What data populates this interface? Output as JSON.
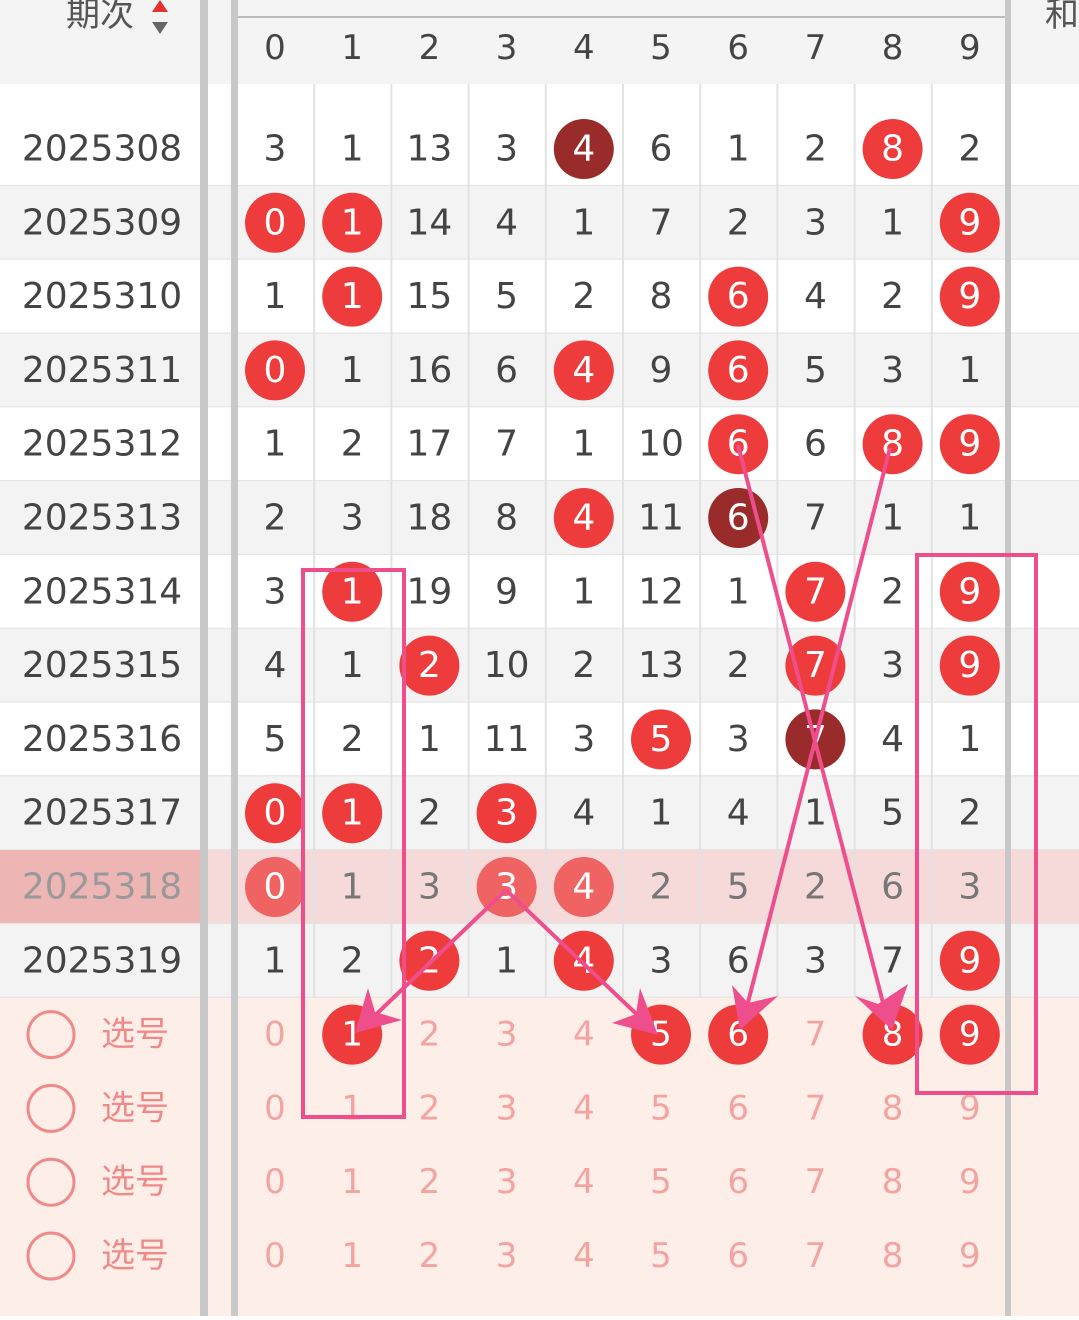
{
  "header": {
    "period_label": "期次",
    "columns": [
      "0",
      "1",
      "2",
      "3",
      "4",
      "5",
      "6",
      "7",
      "8",
      "9"
    ],
    "next_label": "和"
  },
  "rows": [
    {
      "period": "2025308",
      "values": [
        3,
        1,
        13,
        3,
        4,
        6,
        1,
        2,
        8,
        2
      ],
      "balls": [
        null,
        null,
        null,
        null,
        "dark",
        null,
        null,
        null,
        "red",
        null
      ]
    },
    {
      "period": "2025309",
      "values": [
        0,
        1,
        14,
        4,
        1,
        7,
        2,
        3,
        1,
        9
      ],
      "balls": [
        "red",
        "red",
        null,
        null,
        null,
        null,
        null,
        null,
        null,
        "red"
      ]
    },
    {
      "period": "2025310",
      "values": [
        1,
        1,
        15,
        5,
        2,
        8,
        6,
        4,
        2,
        9
      ],
      "balls": [
        null,
        "red",
        null,
        null,
        null,
        null,
        "red",
        null,
        null,
        "red"
      ]
    },
    {
      "period": "2025311",
      "values": [
        0,
        1,
        16,
        6,
        4,
        9,
        6,
        5,
        3,
        1
      ],
      "balls": [
        "red",
        null,
        null,
        null,
        "red",
        null,
        "red",
        null,
        null,
        null
      ]
    },
    {
      "period": "2025312",
      "values": [
        1,
        2,
        17,
        7,
        1,
        10,
        6,
        6,
        8,
        9
      ],
      "balls": [
        null,
        null,
        null,
        null,
        null,
        null,
        "red",
        null,
        "red",
        "red"
      ]
    },
    {
      "period": "2025313",
      "values": [
        2,
        3,
        18,
        8,
        4,
        11,
        6,
        7,
        1,
        1
      ],
      "balls": [
        null,
        null,
        null,
        null,
        "red",
        null,
        "dark",
        null,
        null,
        null
      ]
    },
    {
      "period": "2025314",
      "values": [
        3,
        1,
        19,
        9,
        1,
        12,
        1,
        7,
        2,
        9
      ],
      "balls": [
        null,
        "red",
        null,
        null,
        null,
        null,
        null,
        "red",
        null,
        "red"
      ]
    },
    {
      "period": "2025315",
      "values": [
        4,
        1,
        2,
        10,
        2,
        13,
        2,
        7,
        3,
        9
      ],
      "balls": [
        null,
        null,
        "red",
        null,
        null,
        null,
        null,
        "red",
        null,
        "red"
      ]
    },
    {
      "period": "2025316",
      "values": [
        5,
        2,
        1,
        11,
        3,
        5,
        3,
        7,
        4,
        1
      ],
      "balls": [
        null,
        null,
        null,
        null,
        null,
        "red",
        null,
        "dark",
        null,
        null
      ]
    },
    {
      "period": "2025317",
      "values": [
        0,
        1,
        2,
        3,
        4,
        1,
        4,
        1,
        5,
        2
      ],
      "balls": [
        "red",
        "red",
        null,
        "red",
        null,
        null,
        null,
        null,
        null,
        null
      ]
    },
    {
      "period": "2025318",
      "values": [
        0,
        1,
        3,
        3,
        4,
        2,
        5,
        2,
        6,
        3
      ],
      "balls": [
        "red",
        null,
        null,
        "red",
        "red",
        null,
        null,
        null,
        null,
        null
      ],
      "selected": true
    },
    {
      "period": "2025319",
      "values": [
        1,
        2,
        2,
        1,
        4,
        3,
        6,
        3,
        7,
        9
      ],
      "balls": [
        null,
        null,
        "red",
        null,
        "red",
        null,
        null,
        null,
        null,
        "red"
      ]
    }
  ],
  "picks": [
    {
      "label": "选号",
      "digits": [
        0,
        1,
        2,
        3,
        4,
        5,
        6,
        7,
        8,
        9
      ],
      "balls": [
        null,
        "red",
        null,
        null,
        null,
        "red",
        "red",
        null,
        "red",
        "red"
      ]
    },
    {
      "label": "选号",
      "digits": [
        0,
        1,
        2,
        3,
        4,
        5,
        6,
        7,
        8,
        9
      ],
      "balls": [
        null,
        null,
        null,
        null,
        null,
        null,
        null,
        null,
        null,
        null
      ]
    },
    {
      "label": "选号",
      "digits": [
        0,
        1,
        2,
        3,
        4,
        5,
        6,
        7,
        8,
        9
      ],
      "balls": [
        null,
        null,
        null,
        null,
        null,
        null,
        null,
        null,
        null,
        null
      ]
    },
    {
      "label": "选号",
      "digits": [
        0,
        1,
        2,
        3,
        4,
        5,
        6,
        7,
        8,
        9
      ],
      "balls": [
        null,
        null,
        null,
        null,
        null,
        null,
        null,
        null,
        null,
        null
      ]
    }
  ]
}
